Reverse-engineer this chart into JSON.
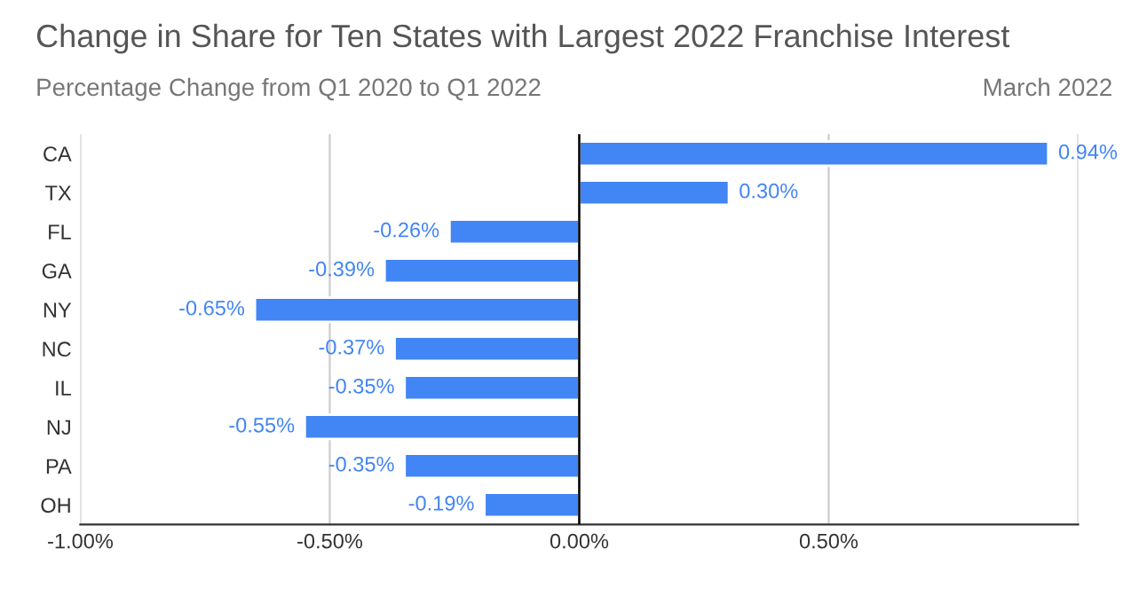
{
  "chart_data": {
    "type": "bar",
    "orientation": "horizontal",
    "title": "Change in Share for Ten States with Largest 2022 Franchise Interest",
    "subtitle": "Percentage Change from Q1 2020 to Q1 2022",
    "annotations": [
      "March 2022"
    ],
    "categories": [
      "CA",
      "TX",
      "FL",
      "GA",
      "NY",
      "NC",
      "IL",
      "NJ",
      "PA",
      "OH"
    ],
    "values": [
      0.94,
      0.3,
      -0.26,
      -0.39,
      -0.65,
      -0.37,
      -0.35,
      -0.55,
      -0.35,
      -0.19
    ],
    "value_labels": [
      "0.94%",
      "0.30%",
      "-0.26%",
      "-0.39%",
      "-0.65%",
      "-0.37%",
      "-0.35%",
      "-0.55%",
      "-0.35%",
      "-0.19%"
    ],
    "color": "#4285f4",
    "xlim": [
      -1.0,
      1.0
    ],
    "xticks": [
      {
        "value": -1.0,
        "label": "-1.00%"
      },
      {
        "value": -0.5,
        "label": "-0.50%"
      },
      {
        "value": 0.0,
        "label": "0.00%"
      },
      {
        "value": 0.5,
        "label": "0.50%"
      },
      {
        "value": 1.0,
        "label": null
      }
    ],
    "ref_lines": [
      {
        "axis": "x",
        "value": 0,
        "label": null,
        "color": "#000000"
      }
    ],
    "grid": "x",
    "legend": false
  }
}
